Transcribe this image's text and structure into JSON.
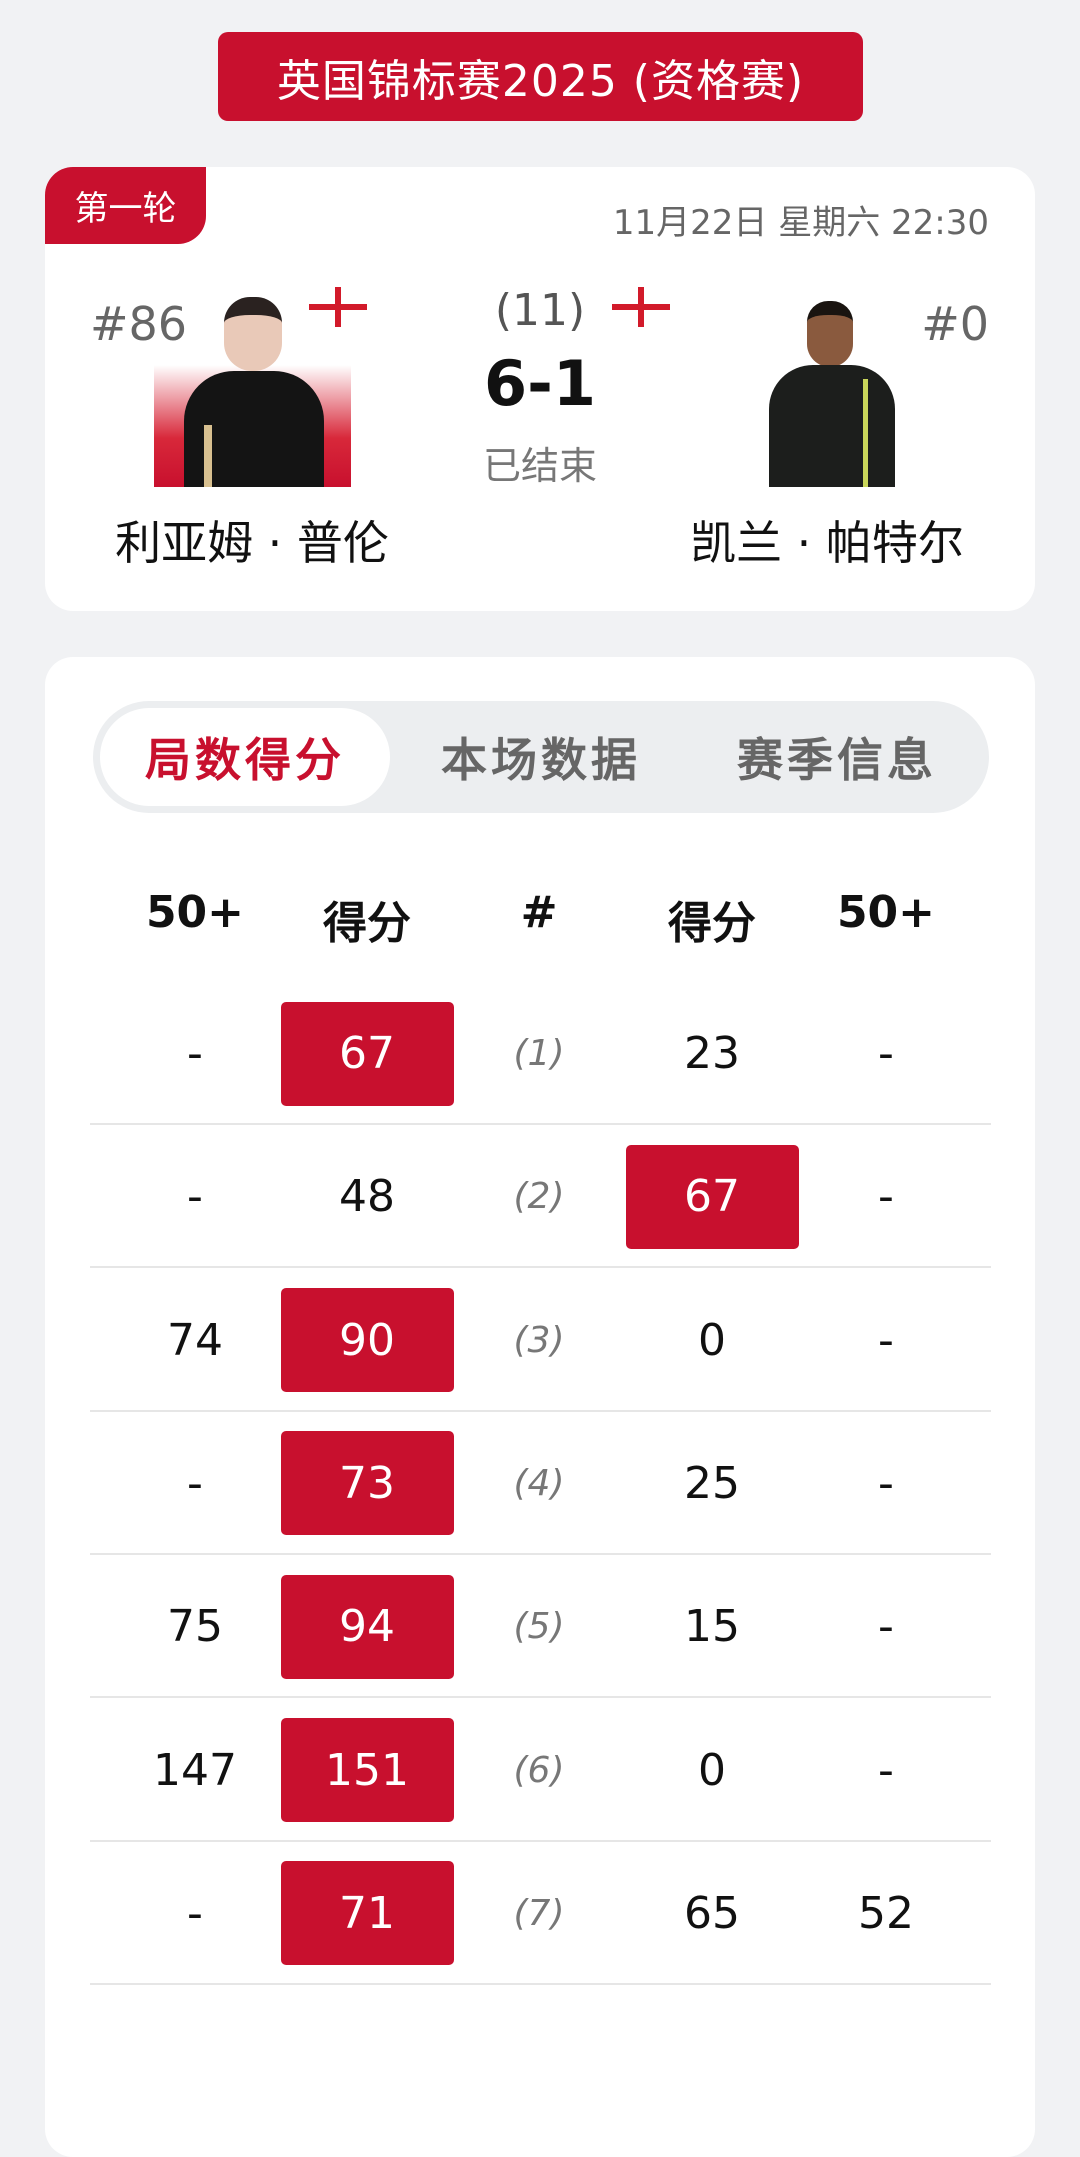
{
  "title": "英国锦标赛2025 (资格赛)",
  "match": {
    "round": "第一轮",
    "datetime": "11月22日 星期六 22:30",
    "frames_total": "(11)",
    "score": "6-1",
    "status": "已结束",
    "player1": {
      "seed": "#86",
      "name": "利亚姆 · 普伦",
      "flag": "england-flag"
    },
    "player2": {
      "seed": "#0",
      "name": "凯兰 · 帕特尔",
      "flag": "england-flag"
    }
  },
  "tabs": [
    {
      "label": "局数得分",
      "active": true
    },
    {
      "label": "本场数据",
      "active": false
    },
    {
      "label": "赛季信息",
      "active": false
    }
  ],
  "table": {
    "headers": [
      "50+",
      "得分",
      "#",
      "得分",
      "50+"
    ],
    "rows": [
      {
        "p1_breaks": "-",
        "p1_score": "67",
        "frame": "(1)",
        "p2_score": "23",
        "p2_breaks": "-",
        "winner": 1
      },
      {
        "p1_breaks": "-",
        "p1_score": "48",
        "frame": "(2)",
        "p2_score": "67",
        "p2_breaks": "-",
        "winner": 2
      },
      {
        "p1_breaks": "74",
        "p1_score": "90",
        "frame": "(3)",
        "p2_score": "0",
        "p2_breaks": "-",
        "winner": 1
      },
      {
        "p1_breaks": "-",
        "p1_score": "73",
        "frame": "(4)",
        "p2_score": "25",
        "p2_breaks": "-",
        "winner": 1
      },
      {
        "p1_breaks": "75",
        "p1_score": "94",
        "frame": "(5)",
        "p2_score": "15",
        "p2_breaks": "-",
        "winner": 1
      },
      {
        "p1_breaks": "147",
        "p1_score": "151",
        "frame": "(6)",
        "p2_score": "0",
        "p2_breaks": "-",
        "winner": 1
      },
      {
        "p1_breaks": "-",
        "p1_score": "71",
        "frame": "(7)",
        "p2_score": "65",
        "p2_breaks": "52",
        "winner": 1
      }
    ]
  },
  "colors": {
    "accent": "#c8102e",
    "background": "#f1f2f4"
  }
}
